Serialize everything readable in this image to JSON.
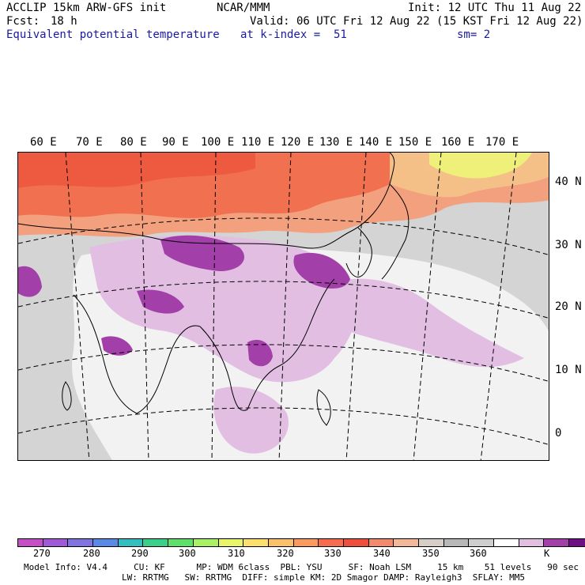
{
  "header": {
    "model": "ACCLIP 15km ARW-GFS init",
    "org": "NCAR/MMM",
    "init": "Init: 12 UTC Thu 11 Aug 22",
    "fcst_label": "Fcst:",
    "fcst_value": "18 h",
    "valid": "Valid: 06 UTC Fri 12 Aug 22 (15 KST Fri 12 Aug 22)",
    "field": "Equivalent potential temperature",
    "level": "at k-index =  51",
    "smoothing": "sm= 2"
  },
  "longitude_labels": [
    "60 E",
    "70 E",
    "80 E",
    "90 E",
    "100 E",
    "110 E",
    "120 E",
    "130 E",
    "140 E",
    "150 E",
    "160 E",
    "170 E"
  ],
  "latitude_labels": [
    "40 N",
    "30 N",
    "20 N",
    "10 N",
    "0"
  ],
  "colorbar": {
    "unit": "K",
    "ticks": [
      "270",
      "280",
      "290",
      "300",
      "310",
      "320",
      "330",
      "340",
      "350",
      "360"
    ],
    "colors": [
      "#c64fc6",
      "#a05ad8",
      "#7f74e0",
      "#5a8ae6",
      "#33bfbf",
      "#3ccf8a",
      "#5fe06a",
      "#a8f064",
      "#e8f46a",
      "#fbe06e",
      "#fbc06a",
      "#fb9a5e",
      "#f76b4e",
      "#ee4e3c",
      "#f28a6e",
      "#f2b898",
      "#d6cfc8",
      "#b8b8b8",
      "#cfcfcf",
      "#ffffff",
      "#e2bfe2",
      "#a23fa8",
      "#6e0f82"
    ]
  },
  "footer": {
    "line1": "Model Info: V4.4     CU: KF      MP: WDM 6class  PBL: YSU     SF: Noah LSM     15 km    51 levels   90 sec",
    "line2": "LW: RRTMG   SW: RRTMG  DIFF: simple KM: 2D Smagor DAMP: Rayleigh3  SFLAY: MM5"
  }
}
